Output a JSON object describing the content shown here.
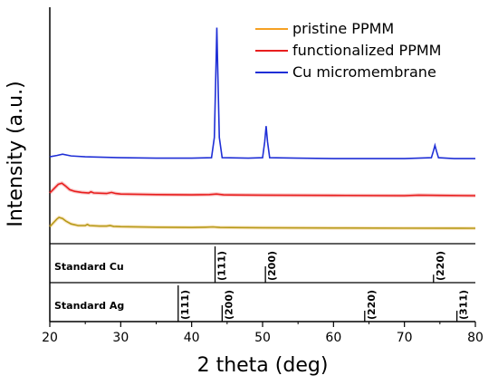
{
  "chart_data": {
    "type": "line",
    "xlabel": "2  theta (deg)",
    "ylabel": "Intensity (a.u.)",
    "xlim": [
      20,
      80
    ],
    "x_ticks": [
      "20",
      "30",
      "40",
      "50",
      "60",
      "70",
      "80"
    ],
    "legend_placement": "top-right",
    "grid": false,
    "series": [
      {
        "name": "pristine PPMM",
        "color": "#f5a023",
        "line_color": "#b59a17",
        "points": [
          [
            20,
            0.03
          ],
          [
            20.5,
            0.1
          ],
          [
            21,
            0.17
          ],
          [
            21.3,
            0.2
          ],
          [
            21.8,
            0.18
          ],
          [
            22.3,
            0.13
          ],
          [
            23,
            0.08
          ],
          [
            24,
            0.05
          ],
          [
            25,
            0.05
          ],
          [
            25.3,
            0.07
          ],
          [
            25.6,
            0.05
          ],
          [
            27,
            0.04
          ],
          [
            28,
            0.04
          ],
          [
            28.5,
            0.05
          ],
          [
            29,
            0.035
          ],
          [
            30,
            0.03
          ],
          [
            35,
            0.02
          ],
          [
            40,
            0.015
          ],
          [
            42,
            0.02
          ],
          [
            43,
            0.025
          ],
          [
            44,
            0.015
          ],
          [
            50,
            0.01
          ],
          [
            60,
            0.005
          ],
          [
            70,
            0.002
          ],
          [
            80,
            0.0
          ]
        ]
      },
      {
        "name": "functionalized PPMM",
        "color": "#e81e1e",
        "line_color": "#e81e1e",
        "points": [
          [
            20,
            0.05
          ],
          [
            20.6,
            0.13
          ],
          [
            21.2,
            0.21
          ],
          [
            21.7,
            0.23
          ],
          [
            22.2,
            0.18
          ],
          [
            22.8,
            0.11
          ],
          [
            23.5,
            0.08
          ],
          [
            24.5,
            0.06
          ],
          [
            25.5,
            0.05
          ],
          [
            25.8,
            0.07
          ],
          [
            26.2,
            0.05
          ],
          [
            28,
            0.04
          ],
          [
            28.7,
            0.06
          ],
          [
            29.3,
            0.04
          ],
          [
            30,
            0.03
          ],
          [
            35,
            0.02
          ],
          [
            40,
            0.015
          ],
          [
            42.5,
            0.02
          ],
          [
            43.5,
            0.03
          ],
          [
            44.5,
            0.015
          ],
          [
            50,
            0.01
          ],
          [
            60,
            0.005
          ],
          [
            70,
            0.0
          ],
          [
            72,
            0.01
          ],
          [
            75,
            0.005
          ],
          [
            80,
            0.0
          ]
        ]
      },
      {
        "name": "Cu micromembrane",
        "color": "#1f2fd6",
        "line_color": "#1f2fd6",
        "points": [
          [
            20,
            0.03
          ],
          [
            21,
            0.045
          ],
          [
            21.8,
            0.06
          ],
          [
            23,
            0.04
          ],
          [
            25,
            0.03
          ],
          [
            30,
            0.02
          ],
          [
            35,
            0.015
          ],
          [
            40,
            0.015
          ],
          [
            42.8,
            0.02
          ],
          [
            43.2,
            0.25
          ],
          [
            43.4,
            0.95
          ],
          [
            43.55,
            1.5
          ],
          [
            43.7,
            0.95
          ],
          [
            43.9,
            0.25
          ],
          [
            44.3,
            0.02
          ],
          [
            48,
            0.015
          ],
          [
            50,
            0.02
          ],
          [
            50.3,
            0.2
          ],
          [
            50.5,
            0.38
          ],
          [
            50.7,
            0.2
          ],
          [
            51.0,
            0.02
          ],
          [
            55,
            0.015
          ],
          [
            60,
            0.01
          ],
          [
            65,
            0.01
          ],
          [
            70,
            0.01
          ],
          [
            73.8,
            0.02
          ],
          [
            74.1,
            0.1
          ],
          [
            74.3,
            0.16
          ],
          [
            74.5,
            0.1
          ],
          [
            74.8,
            0.02
          ],
          [
            77,
            0.01
          ],
          [
            80,
            0.01
          ]
        ]
      }
    ],
    "standards": [
      {
        "title": "Standard Cu",
        "peaks": [
          {
            "x": 43.3,
            "label": "(111)",
            "height": 1.0
          },
          {
            "x": 50.4,
            "label": "(200)",
            "height": 0.45
          },
          {
            "x": 74.1,
            "label": "(220)",
            "height": 0.22
          }
        ]
      },
      {
        "title": "Standard Ag",
        "peaks": [
          {
            "x": 38.1,
            "label": "(111)",
            "height": 1.0
          },
          {
            "x": 44.3,
            "label": "(200)",
            "height": 0.45
          },
          {
            "x": 64.4,
            "label": "(220)",
            "height": 0.3
          },
          {
            "x": 77.4,
            "label": "(311)",
            "height": 0.3
          }
        ]
      }
    ]
  }
}
